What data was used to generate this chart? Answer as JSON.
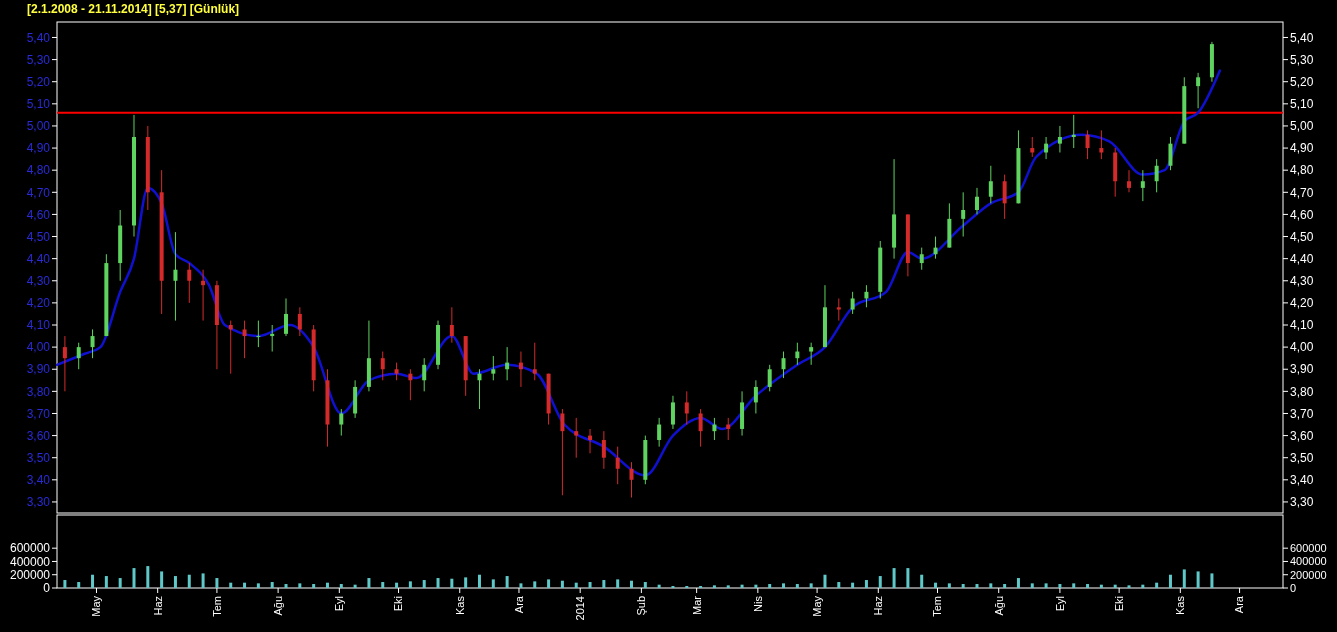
{
  "chart_data": [
    {
      "type": "candlestick",
      "title": "[2.1.2008 - 21.11.2014]  [5,37]  [Günlük]",
      "x": [
        "2013-04-15",
        "2013-04-22",
        "2013-04-29",
        "2013-05-06",
        "2013-05-13",
        "2013-05-20",
        "2013-05-27",
        "2013-06-03",
        "2013-06-10",
        "2013-06-17",
        "2013-06-24",
        "2013-07-01",
        "2013-07-08",
        "2013-07-15",
        "2013-07-22",
        "2013-07-29",
        "2013-08-05",
        "2013-08-12",
        "2013-08-19",
        "2013-08-26",
        "2013-09-02",
        "2013-09-09",
        "2013-09-16",
        "2013-09-23",
        "2013-09-30",
        "2013-10-07",
        "2013-10-14",
        "2013-10-21",
        "2013-10-28",
        "2013-11-04",
        "2013-11-11",
        "2013-11-18",
        "2013-11-25",
        "2013-12-02",
        "2013-12-09",
        "2013-12-16",
        "2013-12-23",
        "2013-12-30",
        "2014-01-06",
        "2014-01-13",
        "2014-01-20",
        "2014-01-27",
        "2014-02-03",
        "2014-02-10",
        "2014-02-17",
        "2014-02-24",
        "2014-03-03",
        "2014-03-10",
        "2014-03-17",
        "2014-03-24",
        "2014-03-31",
        "2014-04-07",
        "2014-04-14",
        "2014-04-21",
        "2014-04-28",
        "2014-05-05",
        "2014-05-12",
        "2014-05-19",
        "2014-05-26",
        "2014-06-02",
        "2014-06-09",
        "2014-06-16",
        "2014-06-23",
        "2014-06-30",
        "2014-07-07",
        "2014-07-14",
        "2014-07-21",
        "2014-07-28",
        "2014-08-04",
        "2014-08-11",
        "2014-08-18",
        "2014-08-25",
        "2014-09-01",
        "2014-09-08",
        "2014-09-15",
        "2014-09-22",
        "2014-09-29",
        "2014-10-06",
        "2014-10-13",
        "2014-10-20",
        "2014-10-27",
        "2014-11-03",
        "2014-11-10",
        "2014-11-17"
      ],
      "ohlc": [
        [
          4.0,
          4.05,
          3.8,
          3.95
        ],
        [
          3.95,
          4.02,
          3.9,
          4.0
        ],
        [
          4.0,
          4.08,
          3.95,
          4.05
        ],
        [
          4.05,
          4.42,
          4.05,
          4.38
        ],
        [
          4.38,
          4.62,
          4.3,
          4.55
        ],
        [
          4.55,
          5.05,
          4.5,
          4.95
        ],
        [
          4.95,
          5.0,
          4.62,
          4.7
        ],
        [
          4.7,
          4.8,
          4.15,
          4.3
        ],
        [
          4.3,
          4.52,
          4.12,
          4.35
        ],
        [
          4.35,
          4.38,
          4.2,
          4.3
        ],
        [
          4.3,
          4.35,
          4.12,
          4.28
        ],
        [
          4.28,
          4.3,
          3.9,
          4.1
        ],
        [
          4.1,
          4.12,
          3.88,
          4.08
        ],
        [
          4.08,
          4.12,
          3.95,
          4.05
        ],
        [
          4.05,
          4.12,
          4.0,
          4.05
        ],
        [
          4.05,
          4.1,
          3.98,
          4.06
        ],
        [
          4.06,
          4.22,
          4.05,
          4.15
        ],
        [
          4.15,
          4.18,
          4.05,
          4.08
        ],
        [
          4.08,
          4.1,
          3.8,
          3.85
        ],
        [
          3.85,
          3.9,
          3.55,
          3.65
        ],
        [
          3.65,
          3.72,
          3.6,
          3.7
        ],
        [
          3.7,
          3.85,
          3.68,
          3.82
        ],
        [
          3.82,
          4.12,
          3.8,
          3.95
        ],
        [
          3.95,
          3.98,
          3.85,
          3.9
        ],
        [
          3.9,
          3.93,
          3.85,
          3.88
        ],
        [
          3.88,
          3.9,
          3.76,
          3.85
        ],
        [
          3.85,
          3.95,
          3.8,
          3.92
        ],
        [
          3.92,
          4.12,
          3.9,
          4.1
        ],
        [
          4.1,
          4.18,
          4.02,
          4.05
        ],
        [
          4.05,
          4.05,
          3.78,
          3.85
        ],
        [
          3.85,
          3.9,
          3.72,
          3.88
        ],
        [
          3.88,
          3.96,
          3.85,
          3.9
        ],
        [
          3.9,
          4.0,
          3.85,
          3.93
        ],
        [
          3.93,
          3.98,
          3.82,
          3.9
        ],
        [
          3.9,
          4.02,
          3.85,
          3.88
        ],
        [
          3.88,
          3.88,
          3.65,
          3.7
        ],
        [
          3.7,
          3.72,
          3.33,
          3.62
        ],
        [
          3.62,
          3.68,
          3.5,
          3.6
        ],
        [
          3.6,
          3.63,
          3.52,
          3.58
        ],
        [
          3.58,
          3.62,
          3.45,
          3.5
        ],
        [
          3.5,
          3.55,
          3.38,
          3.45
        ],
        [
          3.45,
          3.48,
          3.32,
          3.4
        ],
        [
          3.4,
          3.6,
          3.38,
          3.58
        ],
        [
          3.58,
          3.68,
          3.55,
          3.65
        ],
        [
          3.65,
          3.78,
          3.63,
          3.75
        ],
        [
          3.75,
          3.8,
          3.65,
          3.7
        ],
        [
          3.7,
          3.72,
          3.55,
          3.62
        ],
        [
          3.62,
          3.68,
          3.58,
          3.65
        ],
        [
          3.65,
          3.68,
          3.58,
          3.63
        ],
        [
          3.63,
          3.8,
          3.6,
          3.75
        ],
        [
          3.75,
          3.85,
          3.7,
          3.82
        ],
        [
          3.82,
          3.92,
          3.8,
          3.9
        ],
        [
          3.9,
          3.98,
          3.86,
          3.95
        ],
        [
          3.95,
          4.02,
          3.92,
          3.98
        ],
        [
          3.98,
          4.02,
          3.92,
          4.0
        ],
        [
          4.0,
          4.28,
          4.0,
          4.18
        ],
        [
          4.18,
          4.22,
          4.12,
          4.17
        ],
        [
          4.17,
          4.25,
          4.15,
          4.22
        ],
        [
          4.22,
          4.28,
          4.18,
          4.25
        ],
        [
          4.25,
          4.48,
          4.22,
          4.45
        ],
        [
          4.45,
          4.85,
          4.4,
          4.6
        ],
        [
          4.6,
          4.6,
          4.32,
          4.38
        ],
        [
          4.38,
          4.45,
          4.35,
          4.42
        ],
        [
          4.42,
          4.5,
          4.4,
          4.45
        ],
        [
          4.45,
          4.65,
          4.45,
          4.58
        ],
        [
          4.58,
          4.7,
          4.5,
          4.62
        ],
        [
          4.62,
          4.72,
          4.6,
          4.68
        ],
        [
          4.68,
          4.82,
          4.65,
          4.75
        ],
        [
          4.75,
          4.78,
          4.58,
          4.65
        ],
        [
          4.65,
          4.98,
          4.65,
          4.9
        ],
        [
          4.9,
          4.95,
          4.86,
          4.88
        ],
        [
          4.88,
          4.95,
          4.85,
          4.92
        ],
        [
          4.92,
          5.0,
          4.88,
          4.95
        ],
        [
          4.95,
          5.05,
          4.9,
          4.96
        ],
        [
          4.96,
          4.98,
          4.85,
          4.9
        ],
        [
          4.9,
          4.98,
          4.85,
          4.88
        ],
        [
          4.88,
          4.9,
          4.68,
          4.75
        ],
        [
          4.75,
          4.8,
          4.7,
          4.72
        ],
        [
          4.72,
          4.8,
          4.66,
          4.75
        ],
        [
          4.75,
          4.85,
          4.7,
          4.82
        ],
        [
          4.82,
          4.95,
          4.8,
          4.92
        ],
        [
          4.92,
          5.22,
          4.92,
          5.18
        ],
        [
          5.18,
          5.24,
          5.08,
          5.22
        ],
        [
          5.22,
          5.38,
          5.2,
          5.37
        ]
      ],
      "colors": [
        "#d42a2a",
        "#5fd35f",
        "#5fd35f",
        "#5fd35f",
        "#5fd35f",
        "#5fd35f",
        "#d42a2a",
        "#d42a2a",
        "#5fd35f",
        "#d42a2a",
        "#d42a2a",
        "#d42a2a",
        "#d42a2a",
        "#d42a2a",
        "#5fd35f",
        "#5fd35f",
        "#5fd35f",
        "#d42a2a",
        "#d42a2a",
        "#d42a2a",
        "#5fd35f",
        "#5fd35f",
        "#5fd35f",
        "#d42a2a",
        "#d42a2a",
        "#d42a2a",
        "#5fd35f",
        "#5fd35f",
        "#d42a2a",
        "#d42a2a",
        "#5fd35f",
        "#5fd35f",
        "#5fd35f",
        "#d42a2a",
        "#d42a2a",
        "#d42a2a",
        "#d42a2a",
        "#d42a2a",
        "#d42a2a",
        "#d42a2a",
        "#d42a2a",
        "#d42a2a",
        "#5fd35f",
        "#5fd35f",
        "#5fd35f",
        "#d42a2a",
        "#d42a2a",
        "#5fd35f",
        "#d42a2a",
        "#5fd35f",
        "#5fd35f",
        "#5fd35f",
        "#5fd35f",
        "#5fd35f",
        "#5fd35f",
        "#5fd35f",
        "#d42a2a",
        "#5fd35f",
        "#5fd35f",
        "#5fd35f",
        "#5fd35f",
        "#d42a2a",
        "#5fd35f",
        "#5fd35f",
        "#5fd35f",
        "#5fd35f",
        "#5fd35f",
        "#5fd35f",
        "#d42a2a",
        "#5fd35f",
        "#d42a2a",
        "#5fd35f",
        "#5fd35f",
        "#5fd35f",
        "#d42a2a",
        "#d42a2a",
        "#d42a2a",
        "#d42a2a",
        "#5fd35f",
        "#5fd35f",
        "#5fd35f",
        "#5fd35f",
        "#5fd35f",
        "#5fd35f"
      ],
      "series": [
        {
          "type": "line",
          "color": "#1010d0",
          "x": [
            "2013-04-11",
            "2013-04-25",
            "2013-05-03",
            "2013-05-13",
            "2013-05-20",
            "2013-05-27",
            "2013-06-03",
            "2013-06-10",
            "2013-06-17",
            "2013-06-27",
            "2013-07-05",
            "2013-07-22",
            "2013-08-07",
            "2013-08-19",
            "2013-09-02",
            "2013-09-16",
            "2013-09-30",
            "2013-10-10",
            "2013-10-28",
            "2013-11-08",
            "2013-11-25",
            "2013-12-10",
            "2013-12-24",
            "2014-01-13",
            "2014-02-03",
            "2014-02-17",
            "2014-03-03",
            "2014-03-14",
            "2014-03-31",
            "2014-04-21",
            "2014-05-05",
            "2014-05-19",
            "2014-06-05",
            "2014-06-16",
            "2014-06-23",
            "2014-07-14",
            "2014-07-28",
            "2014-08-11",
            "2014-08-20",
            "2014-09-12",
            "2014-09-26",
            "2014-10-13",
            "2014-10-24",
            "2014-11-03",
            "2014-11-10",
            "2014-11-21"
          ],
          "values": [
            3.92,
            3.97,
            4.0,
            4.25,
            4.4,
            4.72,
            4.65,
            4.42,
            4.38,
            4.28,
            4.1,
            4.05,
            4.1,
            4.0,
            3.7,
            3.85,
            3.88,
            3.86,
            4.05,
            3.88,
            3.92,
            3.88,
            3.65,
            3.55,
            3.42,
            3.6,
            3.68,
            3.63,
            3.78,
            3.92,
            4.0,
            4.18,
            4.25,
            4.43,
            4.4,
            4.55,
            4.65,
            4.7,
            4.86,
            4.96,
            4.93,
            4.78,
            4.8,
            5.02,
            5.06,
            5.25
          ]
        }
      ],
      "ref_lines": [
        {
          "axis": "y",
          "value": 5.06,
          "color": "#ff0000"
        }
      ],
      "xlim": [
        "2013-04-11",
        "2014-12-23"
      ],
      "ylim": [
        3.25,
        5.47
      ],
      "yticks": [
        {
          "value": 3.3,
          "label": "3,30"
        },
        {
          "value": 3.4,
          "label": "3,40"
        },
        {
          "value": 3.5,
          "label": "3,50"
        },
        {
          "value": 3.6,
          "label": "3,60"
        },
        {
          "value": 3.7,
          "label": "3,70"
        },
        {
          "value": 3.8,
          "label": "3,80"
        },
        {
          "value": 3.9,
          "label": "3,90"
        },
        {
          "value": 4.0,
          "label": "4,00"
        },
        {
          "value": 4.1,
          "label": "4,10"
        },
        {
          "value": 4.2,
          "label": "4,20"
        },
        {
          "value": 4.3,
          "label": "4,30"
        },
        {
          "value": 4.4,
          "label": "4,40"
        },
        {
          "value": 4.5,
          "label": "4,50"
        },
        {
          "value": 4.6,
          "label": "4,60"
        },
        {
          "value": 4.7,
          "label": "4,70"
        },
        {
          "value": 4.8,
          "label": "4,80"
        },
        {
          "value": 4.9,
          "label": "4,90"
        },
        {
          "value": 5.0,
          "label": "5,00"
        },
        {
          "value": 5.1,
          "label": "5,10"
        },
        {
          "value": 5.2,
          "label": "5,20"
        },
        {
          "value": 5.3,
          "label": "5,30"
        },
        {
          "value": 5.4,
          "label": "5,40"
        }
      ],
      "y2lim": [
        3.25,
        5.47
      ],
      "y2ticks": [
        {
          "value": 3.3,
          "label": "3,30"
        },
        {
          "value": 3.4,
          "label": "3,40"
        },
        {
          "value": 3.5,
          "label": "3,50"
        },
        {
          "value": 3.6,
          "label": "3,60"
        },
        {
          "value": 3.7,
          "label": "3,70"
        },
        {
          "value": 3.8,
          "label": "3,80"
        },
        {
          "value": 3.9,
          "label": "3,90"
        },
        {
          "value": 4.0,
          "label": "4,00"
        },
        {
          "value": 4.1,
          "label": "4,10"
        },
        {
          "value": 4.2,
          "label": "4,20"
        },
        {
          "value": 4.3,
          "label": "4,30"
        },
        {
          "value": 4.4,
          "label": "4,40"
        },
        {
          "value": 4.5,
          "label": "4,50"
        },
        {
          "value": 4.6,
          "label": "4,60"
        },
        {
          "value": 4.7,
          "label": "4,70"
        },
        {
          "value": 4.8,
          "label": "4,80"
        },
        {
          "value": 4.9,
          "label": "4,90"
        },
        {
          "value": 5.0,
          "label": "5,00"
        },
        {
          "value": 5.1,
          "label": "5,10"
        },
        {
          "value": 5.2,
          "label": "5,20"
        },
        {
          "value": 5.3,
          "label": "5,30"
        },
        {
          "value": 5.4,
          "label": "5,40"
        }
      ],
      "tick_labels": "y"
    },
    {
      "type": "bar",
      "color": "#5fc8c8",
      "x": [
        "2013-04-15",
        "2013-04-22",
        "2013-04-29",
        "2013-05-06",
        "2013-05-13",
        "2013-05-20",
        "2013-05-27",
        "2013-06-03",
        "2013-06-10",
        "2013-06-17",
        "2013-06-24",
        "2013-07-01",
        "2013-07-08",
        "2013-07-15",
        "2013-07-22",
        "2013-07-29",
        "2013-08-05",
        "2013-08-12",
        "2013-08-19",
        "2013-08-26",
        "2013-09-02",
        "2013-09-09",
        "2013-09-16",
        "2013-09-23",
        "2013-09-30",
        "2013-10-07",
        "2013-10-14",
        "2013-10-21",
        "2013-10-28",
        "2013-11-04",
        "2013-11-11",
        "2013-11-18",
        "2013-11-25",
        "2013-12-02",
        "2013-12-09",
        "2013-12-16",
        "2013-12-23",
        "2013-12-30",
        "2014-01-06",
        "2014-01-13",
        "2014-01-20",
        "2014-01-27",
        "2014-02-03",
        "2014-02-10",
        "2014-02-17",
        "2014-02-24",
        "2014-03-03",
        "2014-03-10",
        "2014-03-17",
        "2014-03-24",
        "2014-03-31",
        "2014-04-07",
        "2014-04-14",
        "2014-04-21",
        "2014-04-28",
        "2014-05-05",
        "2014-05-12",
        "2014-05-19",
        "2014-05-26",
        "2014-06-02",
        "2014-06-09",
        "2014-06-16",
        "2014-06-23",
        "2014-06-30",
        "2014-07-07",
        "2014-07-14",
        "2014-07-21",
        "2014-07-28",
        "2014-08-04",
        "2014-08-11",
        "2014-08-18",
        "2014-08-25",
        "2014-09-01",
        "2014-09-08",
        "2014-09-15",
        "2014-09-22",
        "2014-09-29",
        "2014-10-06",
        "2014-10-13",
        "2014-10-20",
        "2014-10-27",
        "2014-11-03",
        "2014-11-10",
        "2014-11-17"
      ],
      "values": [
        120000,
        90000,
        200000,
        180000,
        150000,
        300000,
        330000,
        250000,
        180000,
        200000,
        220000,
        150000,
        80000,
        80000,
        70000,
        90000,
        60000,
        70000,
        60000,
        80000,
        60000,
        50000,
        150000,
        90000,
        80000,
        100000,
        120000,
        150000,
        140000,
        160000,
        200000,
        130000,
        180000,
        70000,
        100000,
        130000,
        110000,
        80000,
        90000,
        120000,
        130000,
        110000,
        90000,
        50000,
        30000,
        30000,
        30000,
        40000,
        40000,
        50000,
        50000,
        60000,
        70000,
        60000,
        70000,
        200000,
        90000,
        80000,
        120000,
        180000,
        300000,
        300000,
        200000,
        80000,
        70000,
        60000,
        60000,
        70000,
        60000,
        150000,
        70000,
        70000,
        60000,
        70000,
        60000,
        50000,
        50000,
        40000,
        50000,
        80000,
        200000,
        280000,
        250000,
        220000
      ],
      "xlim": [
        "2013-04-11",
        "2014-12-23"
      ],
      "xticks": [
        {
          "value": "2013-05-01",
          "label": "May"
        },
        {
          "value": "2013-06-01",
          "label": "Haz"
        },
        {
          "value": "2013-07-01",
          "label": "Tem"
        },
        {
          "value": "2013-08-01",
          "label": "Ağu"
        },
        {
          "value": "2013-09-01",
          "label": "Eyl"
        },
        {
          "value": "2013-10-01",
          "label": "Eki"
        },
        {
          "value": "2013-11-01",
          "label": "Kas"
        },
        {
          "value": "2013-12-01",
          "label": "Ara"
        },
        {
          "value": "2014-01-01",
          "label": "2014"
        },
        {
          "value": "2014-02-01",
          "label": "Şub"
        },
        {
          "value": "2014-03-01",
          "label": "Mar"
        },
        {
          "value": "2014-04-01",
          "label": "Nis"
        },
        {
          "value": "2014-05-01",
          "label": "May"
        },
        {
          "value": "2014-06-01",
          "label": "Haz"
        },
        {
          "value": "2014-07-01",
          "label": "Tem"
        },
        {
          "value": "2014-08-01",
          "label": "Ağu"
        },
        {
          "value": "2014-09-01",
          "label": "Eyl"
        },
        {
          "value": "2014-10-01",
          "label": "Eki"
        },
        {
          "value": "2014-11-01",
          "label": "Kas"
        },
        {
          "value": "2014-12-01",
          "label": "Ara"
        }
      ],
      "ylim": [
        0,
        1100000
      ],
      "yticks": [
        0,
        200000,
        400000,
        600000
      ],
      "y2lim": [
        0,
        1100000
      ],
      "y2ticks": [
        0,
        200000,
        400000,
        600000
      ]
    }
  ]
}
